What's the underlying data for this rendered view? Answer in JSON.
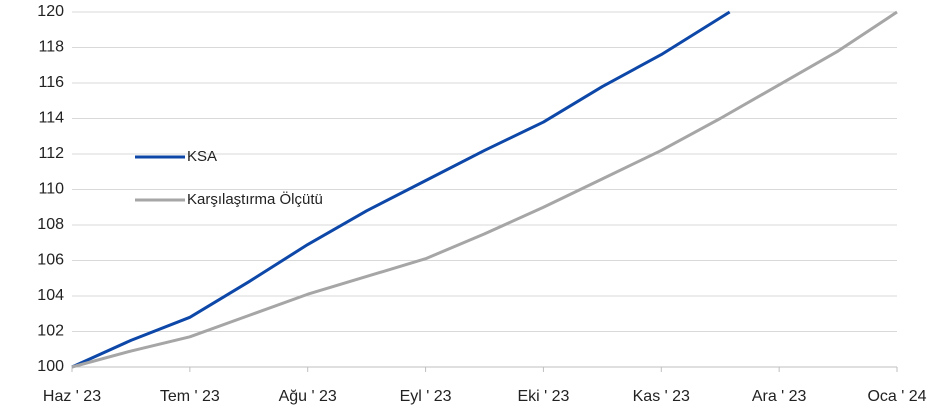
{
  "chart_data": {
    "type": "line",
    "xlim": [
      0,
      7
    ],
    "xticks": [
      {
        "value": 0,
        "label": "Haz ' 23"
      },
      {
        "value": 1,
        "label": "Tem ' 23"
      },
      {
        "value": 2,
        "label": "Ağu ' 23"
      },
      {
        "value": 3,
        "label": "Eyl ' 23"
      },
      {
        "value": 4,
        "label": "Eki ' 23"
      },
      {
        "value": 5,
        "label": "Kas ' 23"
      },
      {
        "value": 6,
        "label": "Ara ' 23"
      },
      {
        "value": 7,
        "label": "Oca ' 24"
      }
    ],
    "ylim": [
      100,
      120
    ],
    "yticks": [
      100,
      102,
      104,
      106,
      108,
      110,
      112,
      114,
      116,
      118,
      120
    ],
    "grid": true,
    "legend": "center-left",
    "series": [
      {
        "name": "KSA",
        "color": "#0d47a8",
        "x": [
          0,
          0.5,
          1,
          1.5,
          2,
          2.5,
          3,
          3.5,
          4,
          4.5,
          5,
          5.58
        ],
        "values": [
          100,
          101.5,
          102.8,
          104.8,
          106.9,
          108.8,
          110.5,
          112.2,
          113.8,
          115.8,
          117.6,
          120
        ]
      },
      {
        "name": "Karşılaştırma Ölçütü",
        "color": "#a6a6a6",
        "x": [
          0,
          0.5,
          1,
          1.5,
          2,
          2.5,
          3,
          3.5,
          4,
          4.5,
          5,
          5.5,
          6,
          6.5,
          7
        ],
        "values": [
          100,
          100.9,
          101.7,
          102.9,
          104.1,
          105.1,
          106.1,
          107.5,
          109.0,
          110.6,
          112.2,
          114.0,
          115.9,
          117.8,
          120
        ]
      }
    ]
  }
}
